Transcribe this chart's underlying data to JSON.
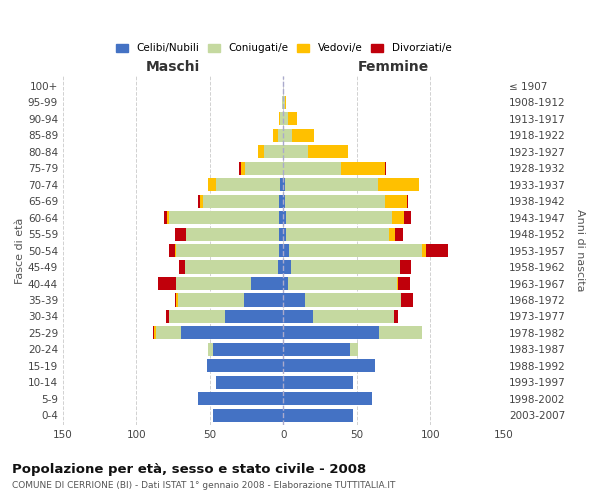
{
  "age_groups": [
    "0-4",
    "5-9",
    "10-14",
    "15-19",
    "20-24",
    "25-29",
    "30-34",
    "35-39",
    "40-44",
    "45-49",
    "50-54",
    "55-59",
    "60-64",
    "65-69",
    "70-74",
    "75-79",
    "80-84",
    "85-89",
    "90-94",
    "95-99",
    "100+"
  ],
  "birth_years": [
    "2003-2007",
    "1998-2002",
    "1993-1997",
    "1988-1992",
    "1983-1987",
    "1978-1982",
    "1973-1977",
    "1968-1972",
    "1963-1967",
    "1958-1962",
    "1953-1957",
    "1948-1952",
    "1943-1947",
    "1938-1942",
    "1933-1937",
    "1928-1932",
    "1923-1927",
    "1918-1922",
    "1913-1917",
    "1908-1912",
    "≤ 1907"
  ],
  "maschi": {
    "celibi": [
      48,
      58,
      46,
      52,
      48,
      70,
      40,
      27,
      22,
      4,
      3,
      3,
      3,
      3,
      2,
      0,
      0,
      0,
      0,
      0,
      0
    ],
    "coniugati": [
      0,
      0,
      0,
      0,
      3,
      17,
      38,
      45,
      51,
      63,
      70,
      63,
      75,
      52,
      44,
      26,
      13,
      4,
      2,
      1,
      0
    ],
    "vedovi": [
      0,
      0,
      0,
      0,
      0,
      1,
      0,
      1,
      0,
      0,
      1,
      0,
      1,
      2,
      5,
      3,
      4,
      3,
      1,
      0,
      0
    ],
    "divorziati": [
      0,
      0,
      0,
      0,
      0,
      1,
      2,
      1,
      12,
      4,
      4,
      8,
      2,
      1,
      0,
      1,
      0,
      0,
      0,
      0,
      0
    ]
  },
  "femmine": {
    "nubili": [
      47,
      60,
      47,
      62,
      45,
      65,
      20,
      15,
      3,
      5,
      4,
      2,
      2,
      1,
      1,
      0,
      0,
      0,
      0,
      0,
      0
    ],
    "coniugate": [
      0,
      0,
      0,
      0,
      6,
      29,
      55,
      65,
      74,
      74,
      90,
      70,
      72,
      68,
      63,
      39,
      17,
      6,
      3,
      1,
      0
    ],
    "vedove": [
      0,
      0,
      0,
      0,
      0,
      0,
      0,
      0,
      1,
      0,
      3,
      4,
      8,
      15,
      28,
      30,
      27,
      15,
      6,
      1,
      0
    ],
    "divorziate": [
      0,
      0,
      0,
      0,
      0,
      0,
      3,
      8,
      8,
      8,
      15,
      5,
      5,
      1,
      0,
      1,
      0,
      0,
      0,
      0,
      0
    ]
  },
  "colors": {
    "celibi": "#4472c4",
    "coniugati": "#c5d9a0",
    "vedovi": "#ffc000",
    "divorziati": "#c0000b"
  },
  "title": "Popolazione per età, sesso e stato civile - 2008",
  "subtitle": "COMUNE DI CERRIONE (BI) - Dati ISTAT 1° gennaio 2008 - Elaborazione TUTTITALIA.IT",
  "xlabel_left": "Maschi",
  "xlabel_right": "Femmine",
  "ylabel_left": "Fasce di età",
  "ylabel_right": "Anni di nascita",
  "xlim": 150,
  "legend_labels": [
    "Celibi/Nubili",
    "Coniugati/e",
    "Vedovi/e",
    "Divorziati/e"
  ],
  "bg_color": "#ffffff",
  "grid_color": "#cccccc",
  "bar_height": 0.8
}
